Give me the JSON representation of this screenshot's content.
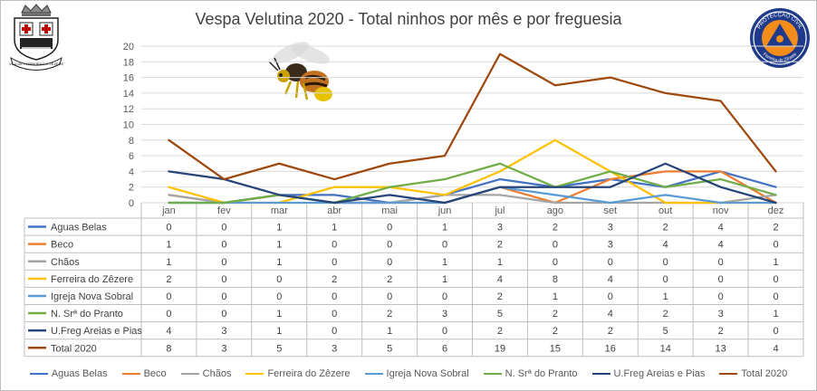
{
  "chart_data": {
    "type": "line",
    "title": "Vespa Velutina 2020 - Total ninhos por mês e por freguesia",
    "categories": [
      "jan",
      "fev",
      "mar",
      "abr",
      "mai",
      "jun",
      "jul",
      "ago",
      "set",
      "out",
      "nov",
      "dez"
    ],
    "ylim": [
      0,
      20
    ],
    "yticks": [
      0,
      2,
      4,
      6,
      8,
      10,
      12,
      14,
      16,
      18,
      20
    ],
    "grid": true,
    "legend_position": "bottom",
    "data_table": true,
    "series": [
      {
        "name": "Aguas Belas",
        "color": "#4472c4",
        "values": [
          0,
          0,
          1,
          1,
          0,
          1,
          3,
          2,
          3,
          2,
          4,
          2
        ]
      },
      {
        "name": "Beco",
        "color": "#ed7d31",
        "values": [
          1,
          0,
          1,
          0,
          0,
          0,
          2,
          0,
          3,
          4,
          4,
          0
        ]
      },
      {
        "name": "Chãos",
        "color": "#a5a5a5",
        "values": [
          1,
          0,
          1,
          0,
          0,
          1,
          1,
          0,
          0,
          0,
          0,
          1
        ]
      },
      {
        "name": "Ferreira do Zêzere",
        "color": "#ffc000",
        "values": [
          2,
          0,
          0,
          2,
          2,
          1,
          4,
          8,
          4,
          0,
          0,
          0
        ]
      },
      {
        "name": "Igreja Nova Sobral",
        "color": "#5b9bd5",
        "values": [
          0,
          0,
          0,
          0,
          0,
          0,
          2,
          1,
          0,
          1,
          0,
          0
        ]
      },
      {
        "name": "N. Srª do Pranto",
        "color": "#70ad47",
        "values": [
          0,
          0,
          1,
          0,
          2,
          3,
          5,
          2,
          4,
          2,
          3,
          1
        ]
      },
      {
        "name": "U.Freg Areias e Pias",
        "color": "#264478",
        "values": [
          4,
          3,
          1,
          0,
          1,
          0,
          2,
          2,
          2,
          5,
          2,
          0
        ]
      },
      {
        "name": "Total 2020",
        "color": "#9e480e",
        "values": [
          8,
          3,
          5,
          3,
          5,
          6,
          19,
          15,
          16,
          14,
          13,
          4
        ]
      }
    ]
  },
  "logos": {
    "left_name": "municipality-coat-of-arms",
    "left_motto": "VILA DE FERREIRA DO ZÊZERE",
    "right_name": "protecao-civil-emblem",
    "right_text_top": "PROTECÇÃO CIVIL",
    "right_text_bottom": "Ferreira do Zêzere"
  }
}
